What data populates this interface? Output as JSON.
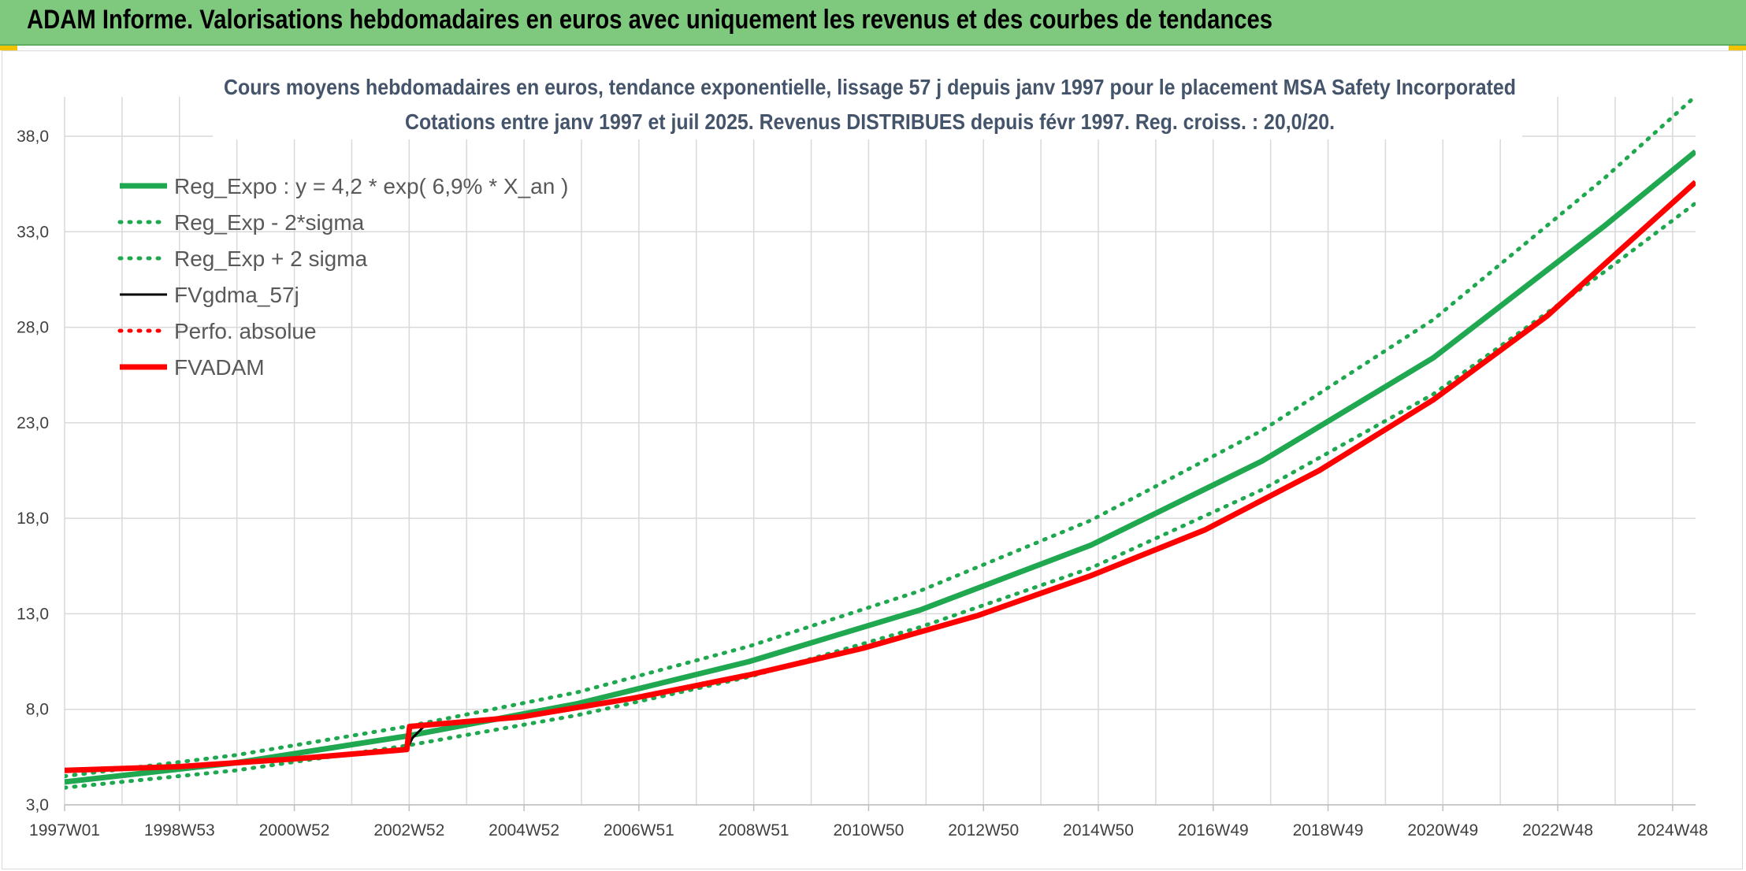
{
  "header": {
    "banner_title": "ADAM Informe. Valorisations hebdomadaires en euros avec uniquement les revenus et des courbes de tendances"
  },
  "chart_data": {
    "type": "line",
    "title": "Cours moyens hebdomadaires en euros, tendance exponentielle, lissage 57 j depuis janv 1997 pour le placement MSA Safety Incorporated",
    "subtitle": "Cotations entre janv 1997 et juil 2025. Revenus DISTRIBUES depuis févr 1997. Reg. croiss. : 20,0/20.",
    "xlabel": "",
    "ylabel": "",
    "ylim": [
      3.0,
      38.0
    ],
    "y_ticks": [
      "3,0",
      "8,0",
      "13,0",
      "18,0",
      "23,0",
      "28,0",
      "33,0",
      "38,0"
    ],
    "x_ticks": [
      "1997W01",
      "1998W53",
      "2000W52",
      "2002W52",
      "2004W52",
      "2006W51",
      "2008W51",
      "2010W50",
      "2012W50",
      "2014W50",
      "2016W49",
      "2018W49",
      "2020W49",
      "2022W48",
      "2024W48"
    ],
    "xlim": [
      1997.0,
      2025.6
    ],
    "grid": true,
    "legend_position": "top-left",
    "series": [
      {
        "name": "Reg_Expo : y = 4,2 * exp( 6,9% *  X_an )",
        "color": "#1fa84f",
        "style": "solid",
        "x": [
          1997.0,
          2000.0,
          2003.0,
          2006.0,
          2009.0,
          2012.0,
          2015.0,
          2018.0,
          2021.0,
          2024.0,
          2025.6
        ],
        "y": [
          4.2,
          5.2,
          6.6,
          8.3,
          10.5,
          13.2,
          16.6,
          21.0,
          26.4,
          33.3,
          37.2
        ]
      },
      {
        "name": "Reg_Exp - 2*sigma",
        "color": "#1fa84f",
        "style": "dotted",
        "x": [
          1997.0,
          2000.0,
          2003.0,
          2006.0,
          2009.0,
          2012.0,
          2015.0,
          2018.0,
          2021.0,
          2024.0,
          2025.6
        ],
        "y": [
          3.9,
          4.8,
          6.1,
          7.7,
          9.7,
          12.3,
          15.4,
          19.5,
          24.5,
          30.9,
          34.5
        ]
      },
      {
        "name": "Reg_Exp + 2 sigma",
        "color": "#1fa84f",
        "style": "dotted",
        "x": [
          1997.0,
          2000.0,
          2003.0,
          2006.0,
          2009.0,
          2012.0,
          2015.0,
          2018.0,
          2021.0,
          2024.0,
          2025.6
        ],
        "y": [
          4.5,
          5.6,
          7.1,
          8.9,
          11.3,
          14.2,
          17.9,
          22.6,
          28.4,
          35.8,
          40.1
        ]
      },
      {
        "name": "FVgdma_57j",
        "color": "#000000",
        "style": "solid",
        "x": [
          1997.0,
          1999.0,
          2001.0,
          2003.0,
          2003.1,
          2003.3,
          2005.0,
          2007.0,
          2009.0,
          2011.0,
          2013.0,
          2015.0,
          2017.0,
          2019.0,
          2021.0,
          2023.0,
          2025.6
        ],
        "y": [
          4.8,
          5.0,
          5.4,
          5.9,
          6.5,
          7.1,
          7.6,
          8.6,
          9.8,
          11.2,
          12.9,
          15.0,
          17.4,
          20.5,
          24.2,
          28.6,
          35.6
        ]
      },
      {
        "name": "Perfo. absolue",
        "color": "#ff0000",
        "style": "dotted",
        "x": [
          1997.0,
          1999.0,
          2001.0,
          2003.0,
          2003.05,
          2005.0,
          2007.0,
          2009.0,
          2011.0,
          2013.0,
          2015.0,
          2017.0,
          2019.0,
          2021.0,
          2023.0,
          2025.6
        ],
        "y": [
          4.8,
          5.0,
          5.4,
          5.9,
          7.1,
          7.6,
          8.6,
          9.8,
          11.2,
          12.9,
          15.0,
          17.4,
          20.5,
          24.2,
          28.6,
          35.6
        ]
      },
      {
        "name": "FVADAM",
        "color": "#ff0000",
        "style": "solid",
        "x": [
          1997.0,
          1999.0,
          2001.0,
          2003.0,
          2003.05,
          2005.0,
          2007.0,
          2009.0,
          2011.0,
          2013.0,
          2015.0,
          2017.0,
          2019.0,
          2021.0,
          2023.0,
          2025.6
        ],
        "y": [
          4.8,
          5.0,
          5.4,
          5.9,
          7.1,
          7.6,
          8.6,
          9.8,
          11.2,
          12.9,
          15.0,
          17.4,
          20.5,
          24.2,
          28.6,
          35.6
        ]
      }
    ]
  }
}
